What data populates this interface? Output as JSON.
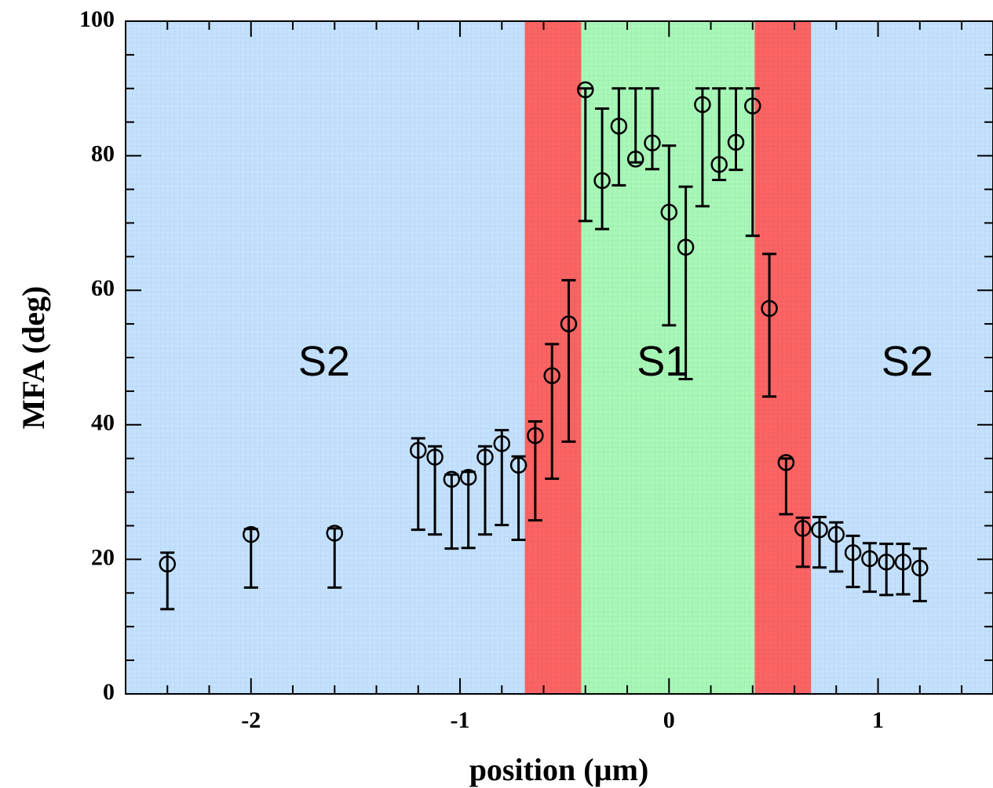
{
  "chart_data": {
    "type": "scatter",
    "title": "",
    "xlabel": "position (µm)",
    "ylabel": "MFA (deg)",
    "xlim": [
      -2.6,
      1.55
    ],
    "ylim": [
      0,
      100
    ],
    "x_ticks": [
      -2,
      -1,
      0,
      1
    ],
    "x_tick_labels": [
      "-2",
      "-1",
      "0",
      "1"
    ],
    "y_ticks": [
      0,
      20,
      40,
      60,
      80,
      100
    ],
    "y_tick_labels": [
      "0",
      "20",
      "40",
      "60",
      "80",
      "100"
    ],
    "grid": false,
    "legend": "none",
    "regions": [
      {
        "label": "S2",
        "x0": -2.6,
        "x1": -0.69,
        "color": "#c4e2ff",
        "label_x": -1.65,
        "label_y": 49
      },
      {
        "label": "",
        "x0": -0.69,
        "x1": -0.42,
        "color": "#fc6464"
      },
      {
        "label": "S1",
        "x0": -0.42,
        "x1": 0.41,
        "color": "#a8f8b8",
        "label_x": -0.03,
        "label_y": 49
      },
      {
        "label": "",
        "x0": 0.41,
        "x1": 0.68,
        "color": "#fc6464"
      },
      {
        "label": "S2",
        "x0": 0.68,
        "x1": 1.55,
        "color": "#c4e2ff",
        "label_x": 1.14,
        "label_y": 49
      }
    ],
    "series": [
      {
        "marker": "open-circle",
        "points": [
          {
            "x": -2.4,
            "y": 19.3,
            "lo": 12.6,
            "hi": 21.0
          },
          {
            "x": -2.0,
            "y": 23.7,
            "lo": 15.8,
            "hi": 24.5
          },
          {
            "x": -1.6,
            "y": 23.9,
            "lo": 15.8,
            "hi": 24.6
          },
          {
            "x": -1.2,
            "y": 36.2,
            "lo": 24.4,
            "hi": 38.0
          },
          {
            "x": -1.12,
            "y": 35.2,
            "lo": 23.7,
            "hi": 36.8
          },
          {
            "x": -1.04,
            "y": 31.9,
            "lo": 21.6,
            "hi": 32.6
          },
          {
            "x": -0.96,
            "y": 32.2,
            "lo": 21.7,
            "hi": 33.0
          },
          {
            "x": -0.88,
            "y": 35.2,
            "lo": 23.7,
            "hi": 36.8
          },
          {
            "x": -0.8,
            "y": 37.2,
            "lo": 25.1,
            "hi": 39.2
          },
          {
            "x": -0.72,
            "y": 34.0,
            "lo": 22.9,
            "hi": 35.3
          },
          {
            "x": -0.64,
            "y": 38.4,
            "lo": 25.8,
            "hi": 40.5
          },
          {
            "x": -0.56,
            "y": 47.3,
            "lo": 32.0,
            "hi": 52.0
          },
          {
            "x": -0.48,
            "y": 55.0,
            "lo": 37.5,
            "hi": 61.5
          },
          {
            "x": -0.4,
            "y": 89.8,
            "lo": 70.3,
            "hi": 90.0
          },
          {
            "x": -0.32,
            "y": 76.3,
            "lo": 69.1,
            "hi": 87.0
          },
          {
            "x": -0.24,
            "y": 84.4,
            "lo": 75.6,
            "hi": 90.0
          },
          {
            "x": -0.16,
            "y": 79.5,
            "lo": 79.0,
            "hi": 90.0
          },
          {
            "x": -0.08,
            "y": 81.9,
            "lo": 78.0,
            "hi": 90.0
          },
          {
            "x": 0.0,
            "y": 71.6,
            "lo": 54.8,
            "hi": 81.5
          },
          {
            "x": 0.08,
            "y": 66.4,
            "lo": 46.8,
            "hi": 75.4
          },
          {
            "x": 0.16,
            "y": 87.6,
            "lo": 72.5,
            "hi": 90.0
          },
          {
            "x": 0.24,
            "y": 78.7,
            "lo": 76.4,
            "hi": 90.0
          },
          {
            "x": 0.32,
            "y": 82.0,
            "lo": 77.9,
            "hi": 90.0
          },
          {
            "x": 0.4,
            "y": 87.4,
            "lo": 68.1,
            "hi": 90.0
          },
          {
            "x": 0.48,
            "y": 57.3,
            "lo": 44.2,
            "hi": 65.4
          },
          {
            "x": 0.56,
            "y": 34.4,
            "lo": 26.7,
            "hi": 35.0
          },
          {
            "x": 0.64,
            "y": 24.6,
            "lo": 18.9,
            "hi": 26.2
          },
          {
            "x": 0.72,
            "y": 24.4,
            "lo": 18.8,
            "hi": 26.3
          },
          {
            "x": 0.8,
            "y": 23.7,
            "lo": 18.2,
            "hi": 25.5
          },
          {
            "x": 0.88,
            "y": 21.0,
            "lo": 15.9,
            "hi": 23.5
          },
          {
            "x": 0.96,
            "y": 20.1,
            "lo": 15.2,
            "hi": 22.4
          },
          {
            "x": 1.04,
            "y": 19.6,
            "lo": 14.7,
            "hi": 22.3
          },
          {
            "x": 1.12,
            "y": 19.6,
            "lo": 14.8,
            "hi": 22.3
          },
          {
            "x": 1.2,
            "y": 18.7,
            "lo": 13.8,
            "hi": 21.6
          }
        ]
      }
    ]
  }
}
